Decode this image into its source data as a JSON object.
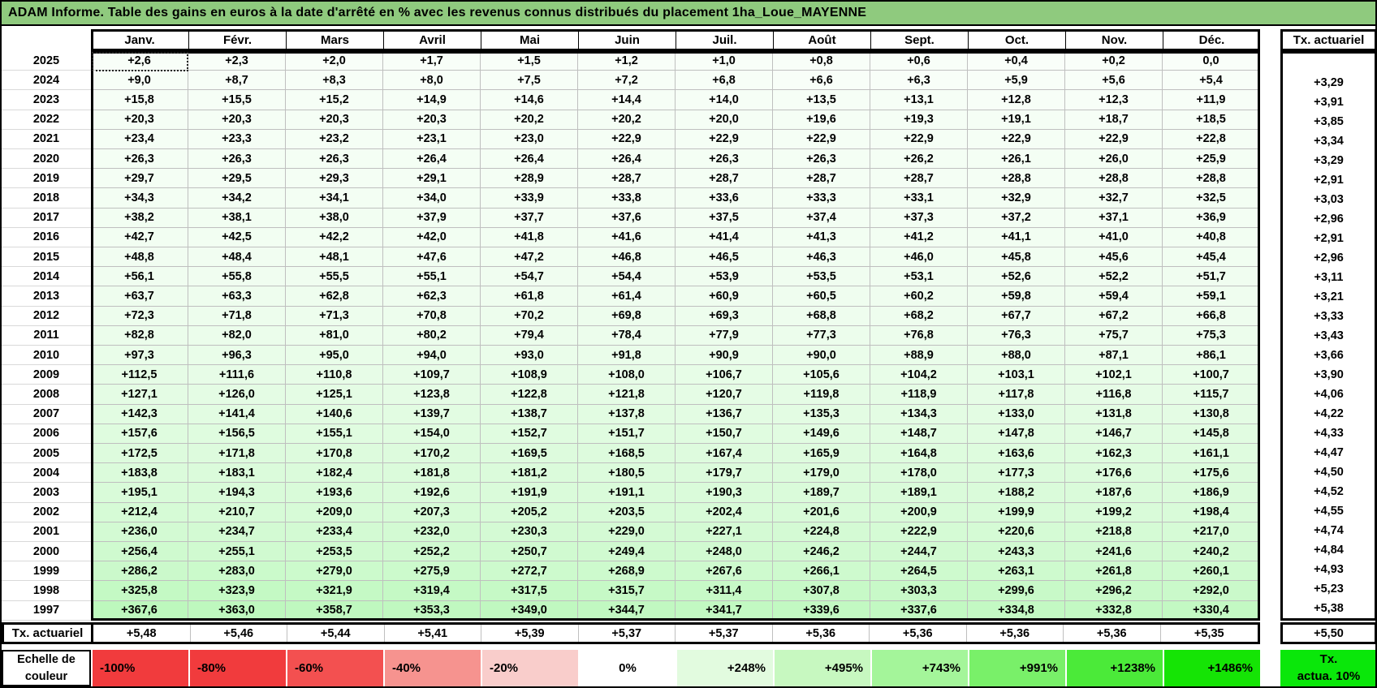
{
  "title": "ADAM Informe. Table des gains en euros à la date d'arrêté en % avec les revenus connus distribués du placement 1ha_Loue_MAYENNE",
  "columns": [
    "Janv.",
    "Févr.",
    "Mars",
    "Avril",
    "Mai",
    "Juin",
    "Juil.",
    "Août",
    "Sept.",
    "Oct.",
    "Nov.",
    "Déc."
  ],
  "right_column_header": "Tx. actuariel",
  "rows": [
    {
      "year": "2025",
      "values": [
        "+2,6",
        "+2,3",
        "+2,0",
        "+1,7",
        "+1,5",
        "+1,2",
        "+1,0",
        "+0,8",
        "+0,6",
        "+0,4",
        "+0,2",
        "0,0"
      ],
      "tx": ""
    },
    {
      "year": "2024",
      "values": [
        "+9,0",
        "+8,7",
        "+8,3",
        "+8,0",
        "+7,5",
        "+7,2",
        "+6,8",
        "+6,6",
        "+6,3",
        "+5,9",
        "+5,6",
        "+5,4"
      ],
      "tx": "+3,29"
    },
    {
      "year": "2023",
      "values": [
        "+15,8",
        "+15,5",
        "+15,2",
        "+14,9",
        "+14,6",
        "+14,4",
        "+14,0",
        "+13,5",
        "+13,1",
        "+12,8",
        "+12,3",
        "+11,9"
      ],
      "tx": "+3,91"
    },
    {
      "year": "2022",
      "values": [
        "+20,3",
        "+20,3",
        "+20,3",
        "+20,3",
        "+20,2",
        "+20,2",
        "+20,0",
        "+19,6",
        "+19,3",
        "+19,1",
        "+18,7",
        "+18,5"
      ],
      "tx": "+3,85"
    },
    {
      "year": "2021",
      "values": [
        "+23,4",
        "+23,3",
        "+23,2",
        "+23,1",
        "+23,0",
        "+22,9",
        "+22,9",
        "+22,9",
        "+22,9",
        "+22,9",
        "+22,9",
        "+22,8"
      ],
      "tx": "+3,34"
    },
    {
      "year": "2020",
      "values": [
        "+26,3",
        "+26,3",
        "+26,3",
        "+26,4",
        "+26,4",
        "+26,4",
        "+26,3",
        "+26,3",
        "+26,2",
        "+26,1",
        "+26,0",
        "+25,9"
      ],
      "tx": "+3,29"
    },
    {
      "year": "2019",
      "values": [
        "+29,7",
        "+29,5",
        "+29,3",
        "+29,1",
        "+28,9",
        "+28,7",
        "+28,7",
        "+28,7",
        "+28,7",
        "+28,8",
        "+28,8",
        "+28,8"
      ],
      "tx": "+2,91"
    },
    {
      "year": "2018",
      "values": [
        "+34,3",
        "+34,2",
        "+34,1",
        "+34,0",
        "+33,9",
        "+33,8",
        "+33,6",
        "+33,3",
        "+33,1",
        "+32,9",
        "+32,7",
        "+32,5"
      ],
      "tx": "+3,03"
    },
    {
      "year": "2017",
      "values": [
        "+38,2",
        "+38,1",
        "+38,0",
        "+37,9",
        "+37,7",
        "+37,6",
        "+37,5",
        "+37,4",
        "+37,3",
        "+37,2",
        "+37,1",
        "+36,9"
      ],
      "tx": "+2,96"
    },
    {
      "year": "2016",
      "values": [
        "+42,7",
        "+42,5",
        "+42,2",
        "+42,0",
        "+41,8",
        "+41,6",
        "+41,4",
        "+41,3",
        "+41,2",
        "+41,1",
        "+41,0",
        "+40,8"
      ],
      "tx": "+2,91"
    },
    {
      "year": "2015",
      "values": [
        "+48,8",
        "+48,4",
        "+48,1",
        "+47,6",
        "+47,2",
        "+46,8",
        "+46,5",
        "+46,3",
        "+46,0",
        "+45,8",
        "+45,6",
        "+45,4"
      ],
      "tx": "+2,96"
    },
    {
      "year": "2014",
      "values": [
        "+56,1",
        "+55,8",
        "+55,5",
        "+55,1",
        "+54,7",
        "+54,4",
        "+53,9",
        "+53,5",
        "+53,1",
        "+52,6",
        "+52,2",
        "+51,7"
      ],
      "tx": "+3,11"
    },
    {
      "year": "2013",
      "values": [
        "+63,7",
        "+63,3",
        "+62,8",
        "+62,3",
        "+61,8",
        "+61,4",
        "+60,9",
        "+60,5",
        "+60,2",
        "+59,8",
        "+59,4",
        "+59,1"
      ],
      "tx": "+3,21"
    },
    {
      "year": "2012",
      "values": [
        "+72,3",
        "+71,8",
        "+71,3",
        "+70,8",
        "+70,2",
        "+69,8",
        "+69,3",
        "+68,8",
        "+68,2",
        "+67,7",
        "+67,2",
        "+66,8"
      ],
      "tx": "+3,33"
    },
    {
      "year": "2011",
      "values": [
        "+82,8",
        "+82,0",
        "+81,0",
        "+80,2",
        "+79,4",
        "+78,4",
        "+77,9",
        "+77,3",
        "+76,8",
        "+76,3",
        "+75,7",
        "+75,3"
      ],
      "tx": "+3,43"
    },
    {
      "year": "2010",
      "values": [
        "+97,3",
        "+96,3",
        "+95,0",
        "+94,0",
        "+93,0",
        "+91,8",
        "+90,9",
        "+90,0",
        "+88,9",
        "+88,0",
        "+87,1",
        "+86,1"
      ],
      "tx": "+3,66"
    },
    {
      "year": "2009",
      "values": [
        "+112,5",
        "+111,6",
        "+110,8",
        "+109,7",
        "+108,9",
        "+108,0",
        "+106,7",
        "+105,6",
        "+104,2",
        "+103,1",
        "+102,1",
        "+100,7"
      ],
      "tx": "+3,90"
    },
    {
      "year": "2008",
      "values": [
        "+127,1",
        "+126,0",
        "+125,1",
        "+123,8",
        "+122,8",
        "+121,8",
        "+120,7",
        "+119,8",
        "+118,9",
        "+117,8",
        "+116,8",
        "+115,7"
      ],
      "tx": "+4,06"
    },
    {
      "year": "2007",
      "values": [
        "+142,3",
        "+141,4",
        "+140,6",
        "+139,7",
        "+138,7",
        "+137,8",
        "+136,7",
        "+135,3",
        "+134,3",
        "+133,0",
        "+131,8",
        "+130,8"
      ],
      "tx": "+4,22"
    },
    {
      "year": "2006",
      "values": [
        "+157,6",
        "+156,5",
        "+155,1",
        "+154,0",
        "+152,7",
        "+151,7",
        "+150,7",
        "+149,6",
        "+148,7",
        "+147,8",
        "+146,7",
        "+145,8"
      ],
      "tx": "+4,33"
    },
    {
      "year": "2005",
      "values": [
        "+172,5",
        "+171,8",
        "+170,8",
        "+170,2",
        "+169,5",
        "+168,5",
        "+167,4",
        "+165,9",
        "+164,8",
        "+163,6",
        "+162,3",
        "+161,1"
      ],
      "tx": "+4,47"
    },
    {
      "year": "2004",
      "values": [
        "+183,8",
        "+183,1",
        "+182,4",
        "+181,8",
        "+181,2",
        "+180,5",
        "+179,7",
        "+179,0",
        "+178,0",
        "+177,3",
        "+176,6",
        "+175,6"
      ],
      "tx": "+4,50"
    },
    {
      "year": "2003",
      "values": [
        "+195,1",
        "+194,3",
        "+193,6",
        "+192,6",
        "+191,9",
        "+191,1",
        "+190,3",
        "+189,7",
        "+189,1",
        "+188,2",
        "+187,6",
        "+186,9"
      ],
      "tx": "+4,52"
    },
    {
      "year": "2002",
      "values": [
        "+212,4",
        "+210,7",
        "+209,0",
        "+207,3",
        "+205,2",
        "+203,5",
        "+202,4",
        "+201,6",
        "+200,9",
        "+199,9",
        "+199,2",
        "+198,4"
      ],
      "tx": "+4,55"
    },
    {
      "year": "2001",
      "values": [
        "+236,0",
        "+234,7",
        "+233,4",
        "+232,0",
        "+230,3",
        "+229,0",
        "+227,1",
        "+224,8",
        "+222,9",
        "+220,6",
        "+218,8",
        "+217,0"
      ],
      "tx": "+4,74"
    },
    {
      "year": "2000",
      "values": [
        "+256,4",
        "+255,1",
        "+253,5",
        "+252,2",
        "+250,7",
        "+249,4",
        "+248,0",
        "+246,2",
        "+244,7",
        "+243,3",
        "+241,6",
        "+240,2"
      ],
      "tx": "+4,84"
    },
    {
      "year": "1999",
      "values": [
        "+286,2",
        "+283,0",
        "+279,0",
        "+275,9",
        "+272,7",
        "+268,9",
        "+267,6",
        "+266,1",
        "+264,5",
        "+263,1",
        "+261,8",
        "+260,1"
      ],
      "tx": "+4,93"
    },
    {
      "year": "1998",
      "values": [
        "+325,8",
        "+323,9",
        "+321,9",
        "+319,4",
        "+317,5",
        "+315,7",
        "+311,4",
        "+307,8",
        "+303,3",
        "+299,6",
        "+296,2",
        "+292,0"
      ],
      "tx": "+5,23"
    },
    {
      "year": "1997",
      "values": [
        "+367,6",
        "+363,0",
        "+358,7",
        "+353,3",
        "+349,0",
        "+344,7",
        "+341,7",
        "+339,6",
        "+337,6",
        "+334,8",
        "+332,8",
        "+330,4"
      ],
      "tx": "+5,38"
    }
  ],
  "footer_row": {
    "label": "Tx. actuariel",
    "values": [
      "+5,48",
      "+5,46",
      "+5,44",
      "+5,41",
      "+5,39",
      "+5,37",
      "+5,37",
      "+5,36",
      "+5,36",
      "+5,36",
      "+5,36",
      "+5,35"
    ],
    "tx": "+5,50"
  },
  "legend": {
    "label_line1": "Echelle de",
    "label_line2": "couleur",
    "stops": [
      {
        "label": "-100%",
        "color": "#f13b3d",
        "align": "left"
      },
      {
        "label": "-80%",
        "color": "#f13b3d",
        "align": "left"
      },
      {
        "label": "-60%",
        "color": "#f35050",
        "align": "left"
      },
      {
        "label": "-40%",
        "color": "#f6938f",
        "align": "left"
      },
      {
        "label": "-20%",
        "color": "#f9cdcb",
        "align": "left"
      },
      {
        "label": "0%",
        "color": "#ffffff",
        "align": "center"
      },
      {
        "label": "+248%",
        "color": "#e2fbdf",
        "align": "right"
      },
      {
        "label": "+495%",
        "color": "#c7f8c0",
        "align": "right"
      },
      {
        "label": "+743%",
        "color": "#a4f59a",
        "align": "right"
      },
      {
        "label": "+991%",
        "color": "#79f069",
        "align": "right"
      },
      {
        "label": "+1238%",
        "color": "#4bea39",
        "align": "right"
      },
      {
        "label": "+1486%",
        "color": "#15e405",
        "align": "right"
      }
    ],
    "right_box_line1": "Tx.",
    "right_box_line2": "actua. 10%",
    "right_box_color": "#0ae70a"
  },
  "colors": {
    "title_bg": "#8fca7e",
    "scale_max_green": "#00e400",
    "grid_line": "#bfbfbf",
    "border": "#000000"
  },
  "selected_cell": {
    "year": "2025",
    "month": "Janv."
  }
}
